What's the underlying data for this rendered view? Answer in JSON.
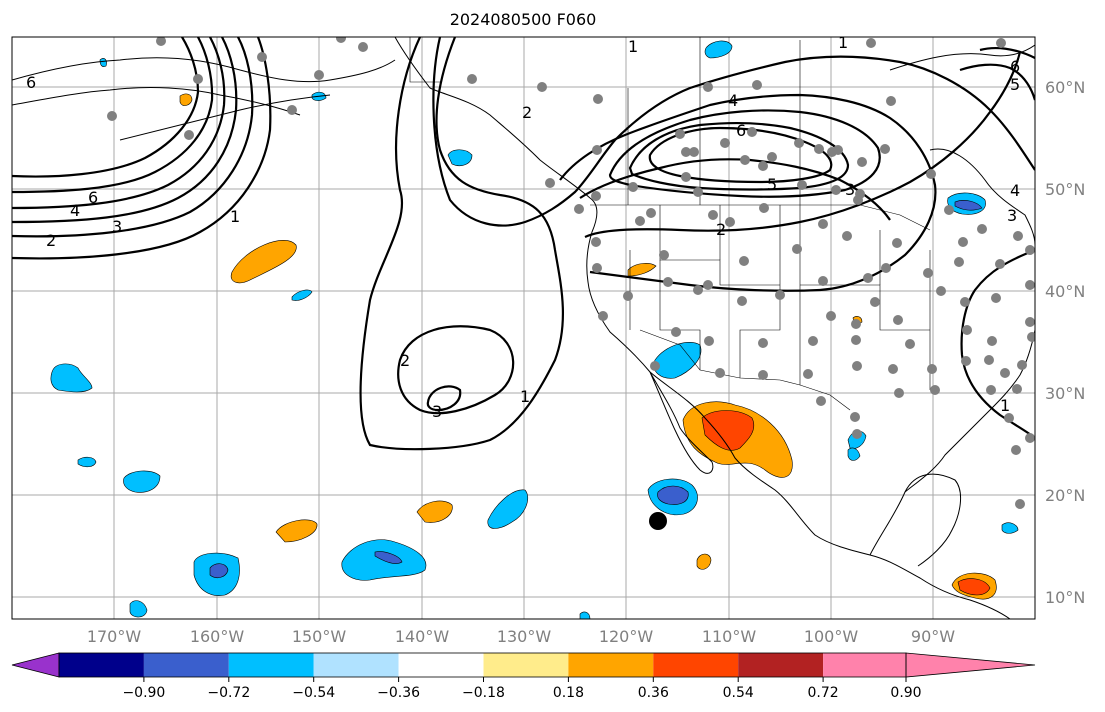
{
  "title": "2024080500 F060",
  "map": {
    "lon_labels": [
      "170°W",
      "160°W",
      "150°W",
      "140°W",
      "130°W",
      "120°W",
      "110°W",
      "100°W",
      "90°W"
    ],
    "lat_labels": [
      "60°N",
      "50°N",
      "40°N",
      "30°N",
      "20°N",
      "10°N"
    ],
    "contour_labels": [
      "1",
      "2",
      "3",
      "4",
      "5",
      "6"
    ]
  },
  "colorbar": {
    "ticks": [
      "−0.90",
      "−0.72",
      "−0.54",
      "−0.36",
      "−0.18",
      "0.18",
      "0.36",
      "0.54",
      "0.72",
      "0.90"
    ],
    "colors": [
      "#9932cc",
      "#00008b",
      "#3a5fcd",
      "#00bfff",
      "#b0e2ff",
      "#ffffff",
      "#ffec8b",
      "#ffa500",
      "#ff4500",
      "#b22222",
      "#ff82ab"
    ]
  }
}
